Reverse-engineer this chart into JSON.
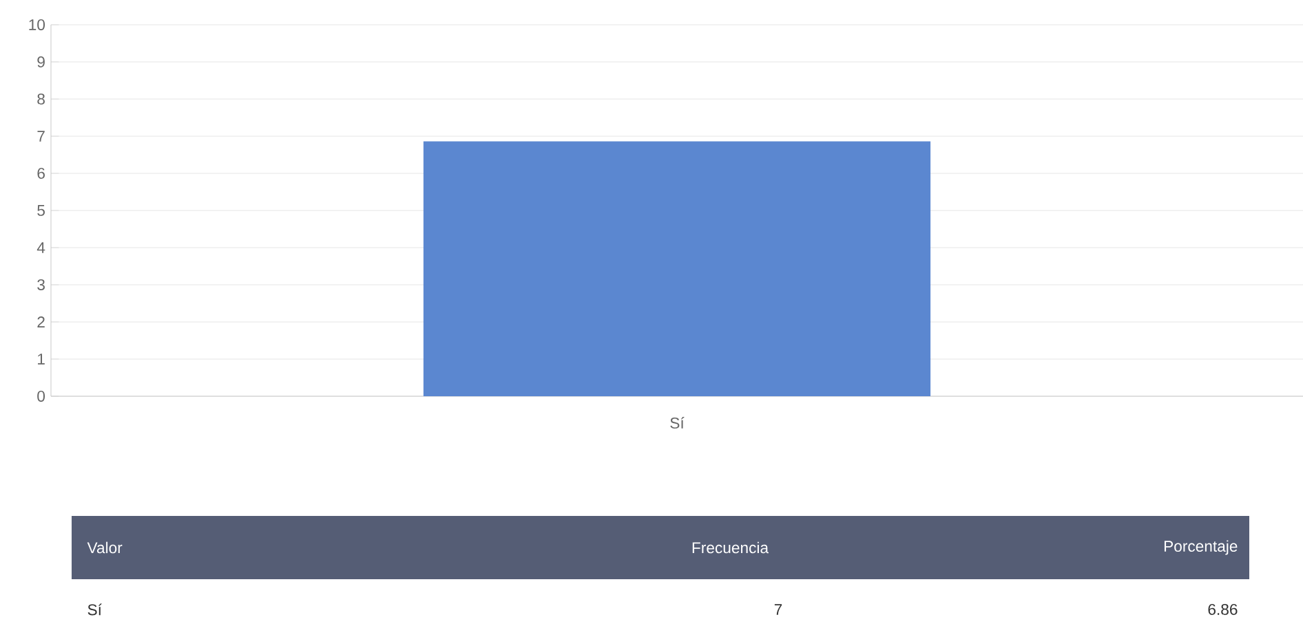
{
  "chart_data": {
    "type": "bar",
    "categories": [
      "Sí"
    ],
    "values": [
      6.86
    ],
    "color": "#5b87d0",
    "ylim": [
      0,
      10
    ],
    "yticks": [
      0,
      1,
      2,
      3,
      4,
      5,
      6,
      7,
      8,
      9,
      10
    ],
    "grid": "y",
    "annotations": [
      "Valor",
      "Frecuencia",
      "Porcentaje",
      "7",
      "6.86"
    ]
  }
}
